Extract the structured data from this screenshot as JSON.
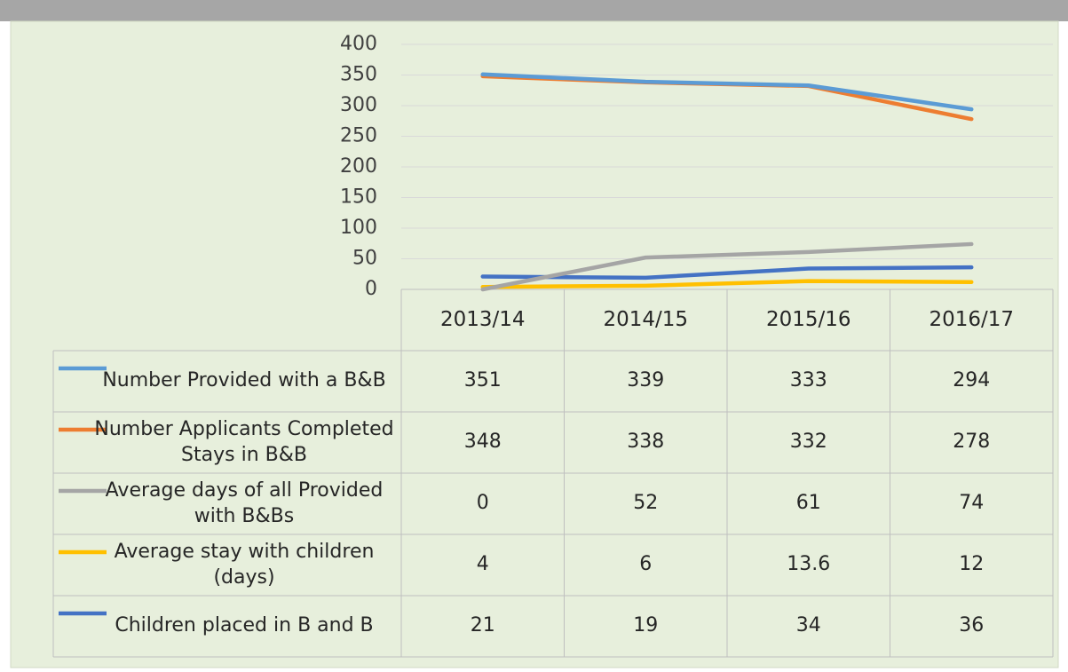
{
  "chart_data": {
    "type": "line",
    "categories": [
      "2013/14",
      "2014/15",
      "2015/16",
      "2016/17"
    ],
    "series": [
      {
        "name": "Number Provided with a B&B",
        "color": "#5b9bd5",
        "values": [
          351,
          339,
          333,
          294
        ]
      },
      {
        "name": "Number Applicants Completed Stays in B&B",
        "color": "#ed7d31",
        "values": [
          348,
          338,
          332,
          278
        ]
      },
      {
        "name": "Average days of all Provided with B&Bs",
        "color": "#a5a5a5",
        "values": [
          0,
          52,
          61,
          74
        ]
      },
      {
        "name": "Average stay with children (days)",
        "color": "#ffc000",
        "values": [
          4,
          6,
          13.6,
          12
        ]
      },
      {
        "name": "Children placed in B and B",
        "color": "#4472c4",
        "values": [
          21,
          19,
          34,
          36
        ]
      }
    ],
    "ylim": [
      0,
      400
    ],
    "yticks": [
      0,
      50,
      100,
      150,
      200,
      250,
      300,
      350,
      400
    ],
    "grid": true
  }
}
